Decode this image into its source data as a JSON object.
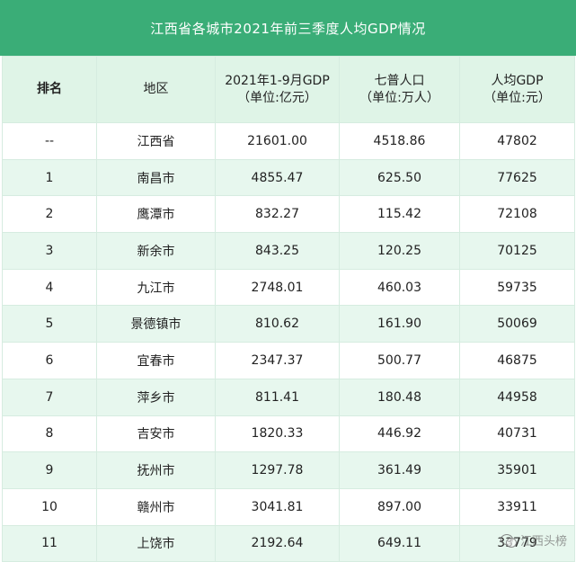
{
  "title": "江西省各城市2021年前三季度人均GDP情况",
  "headers": {
    "rank": "排名",
    "region": "地区",
    "gdp_line1": "2021年1-9月GDP",
    "gdp_line2": "（单位:亿元）",
    "pop_line1": "七普人口",
    "pop_line2": "（单位:万人）",
    "pc_line1": "人均GDP",
    "pc_line2": "（单位:元）"
  },
  "rows": [
    {
      "rank": "--",
      "region": "江西省",
      "gdp": "21601.00",
      "pop": "4518.86",
      "pc": "47802"
    },
    {
      "rank": "1",
      "region": "南昌市",
      "gdp": "4855.47",
      "pop": "625.50",
      "pc": "77625"
    },
    {
      "rank": "2",
      "region": "鹰潭市",
      "gdp": "832.27",
      "pop": "115.42",
      "pc": "72108"
    },
    {
      "rank": "3",
      "region": "新余市",
      "gdp": "843.25",
      "pop": "120.25",
      "pc": "70125"
    },
    {
      "rank": "4",
      "region": "九江市",
      "gdp": "2748.01",
      "pop": "460.03",
      "pc": "59735"
    },
    {
      "rank": "5",
      "region": "景德镇市",
      "gdp": "810.62",
      "pop": "161.90",
      "pc": "50069"
    },
    {
      "rank": "6",
      "region": "宜春市",
      "gdp": "2347.37",
      "pop": "500.77",
      "pc": "46875"
    },
    {
      "rank": "7",
      "region": "萍乡市",
      "gdp": "811.41",
      "pop": "180.48",
      "pc": "44958"
    },
    {
      "rank": "8",
      "region": "吉安市",
      "gdp": "1820.33",
      "pop": "446.92",
      "pc": "40731"
    },
    {
      "rank": "9",
      "region": "抚州市",
      "gdp": "1297.78",
      "pop": "361.49",
      "pc": "35901"
    },
    {
      "rank": "10",
      "region": "赣州市",
      "gdp": "3041.81",
      "pop": "897.00",
      "pc": "33911"
    },
    {
      "rank": "11",
      "region": "上饶市",
      "gdp": "2192.64",
      "pop": "649.11",
      "pc": "33779"
    }
  ],
  "watermark": {
    "text": "江西头榜",
    "icon": "wechat-icon"
  }
}
